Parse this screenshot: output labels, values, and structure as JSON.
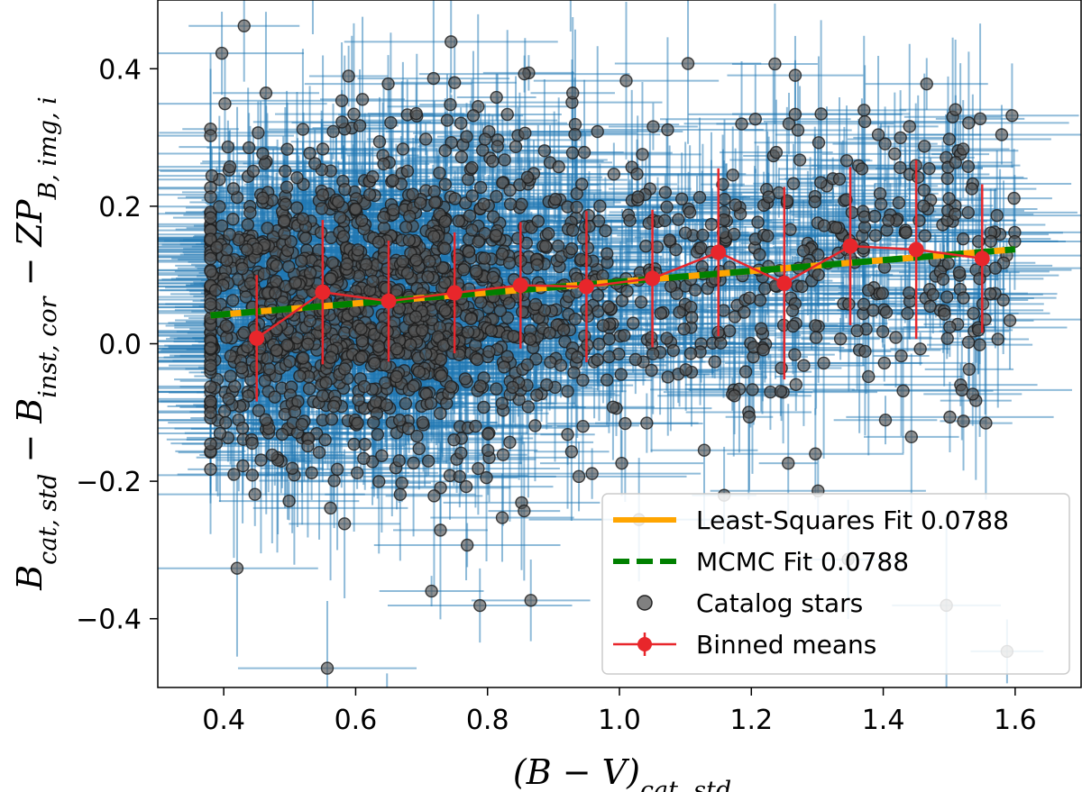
{
  "chart_data": {
    "type": "scatter",
    "title": "",
    "xlabel": "(B − V)_{cat, std}",
    "ylabel": "B_{cat, std} − B_{inst, cor} − ZP_{B, img, i}",
    "xlabel_main": "(B − V)",
    "xlabel_sub": "cat, std",
    "ylabel_parts": {
      "t1": "B",
      "s1": "cat, std",
      "op1": " − ",
      "t2": "B",
      "s2": "inst, cor",
      "op2": " − ",
      "t3": "ZP",
      "s3": "B, img, i"
    },
    "xlim": [
      0.3,
      1.7
    ],
    "ylim": [
      -0.5,
      0.5
    ],
    "xticks": [
      0.4,
      0.6,
      0.8,
      1.0,
      1.2,
      1.4,
      1.6
    ],
    "xtick_labels": [
      "0.4",
      "0.6",
      "0.8",
      "1.0",
      "1.2",
      "1.4",
      "1.6"
    ],
    "yticks": [
      -0.4,
      -0.2,
      0.0,
      0.2,
      0.4
    ],
    "ytick_labels": [
      "−0.4",
      "−0.2",
      "0.0",
      "0.2",
      "0.4"
    ],
    "legend_position": "lower-right",
    "catalog_stars": {
      "name": "Catalog stars",
      "x_range": [
        0.38,
        1.6
      ],
      "y_center": 0.05,
      "y_spread": 0.16,
      "approx_count": 1800,
      "color": "#1f77b4",
      "marker_color": "#555555"
    },
    "fits": [
      {
        "name": "Least-Squares Fit 0.0788",
        "slope": 0.0788,
        "intercept": 0.0113,
        "x_range": [
          0.38,
          1.6
        ],
        "color": "#ffa500",
        "style": "solid"
      },
      {
        "name": "MCMC Fit 0.0788",
        "slope": 0.0788,
        "intercept": 0.0113,
        "x_range": [
          0.38,
          1.6
        ],
        "color": "#008000",
        "style": "dashed"
      }
    ],
    "binned_means": {
      "name": "Binned means",
      "color": "#e8262b",
      "x": [
        0.45,
        0.55,
        0.65,
        0.75,
        0.85,
        0.95,
        1.05,
        1.15,
        1.25,
        1.35,
        1.45,
        1.55
      ],
      "y": [
        0.008,
        0.075,
        0.062,
        0.074,
        0.085,
        0.083,
        0.095,
        0.133,
        0.088,
        0.142,
        0.137,
        0.124
      ],
      "err": [
        0.092,
        0.105,
        0.088,
        0.088,
        0.092,
        0.11,
        0.1,
        0.122,
        0.14,
        0.115,
        0.13,
        0.108
      ]
    }
  }
}
